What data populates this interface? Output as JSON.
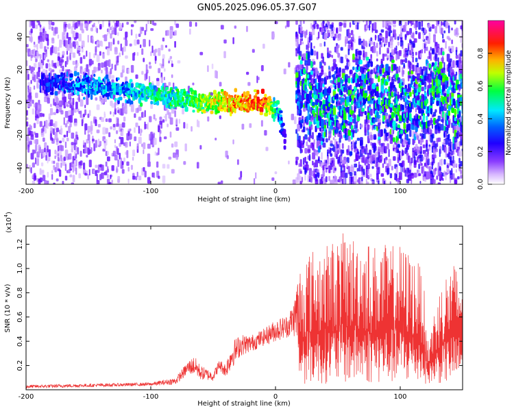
{
  "title": "GN05.2025.096.05.37.G07",
  "colors": {
    "snr_line": "#ee3333",
    "axis": "#000000"
  },
  "chart_data": [
    {
      "type": "heatmap",
      "xlabel": "Height of straight line (km)",
      "ylabel": "Frequency (Hz)",
      "xlim": [
        -200,
        150
      ],
      "ylim": [
        -50,
        50
      ],
      "xticks": [
        -200,
        -100,
        0,
        100
      ],
      "yticks": [
        -40,
        -20,
        0,
        20,
        40
      ],
      "colorbar": {
        "label": "Normalized spectral amplitude",
        "range": [
          0,
          1
        ],
        "ticks": [
          "0.0",
          "0.2",
          "0.4",
          "0.6",
          "0.8"
        ],
        "colormap": [
          "#ffffff",
          "#c090ff",
          "#6000ff",
          "#0000ff",
          "#00ffff",
          "#00ff00",
          "#ffff00",
          "#ff8800",
          "#ff0000",
          "#ff00a0"
        ]
      },
      "ridge": {
        "x": [
          -190,
          -170,
          -150,
          -130,
          -110,
          -90,
          -70,
          -55,
          -40,
          -25,
          -10,
          -3,
          2,
          5,
          7
        ],
        "y": [
          12,
          11,
          10,
          8,
          6,
          4,
          1,
          0,
          0,
          0,
          0,
          -3,
          -8,
          -18,
          -26
        ],
        "amplitude": [
          0.35,
          0.4,
          0.45,
          0.45,
          0.5,
          0.55,
          0.55,
          0.7,
          0.8,
          0.9,
          0.9,
          0.6,
          0.45,
          0.35,
          0.3
        ]
      }
    },
    {
      "type": "line",
      "xlabel": "Height of straight line (km)",
      "ylabel": "SNR (10 * v/v)",
      "y_multiplier": "(x10",
      "y_multiplier_exp": "4",
      "y_multiplier_close": ")",
      "xlim": [
        -200,
        150
      ],
      "ylim": [
        0,
        1.35
      ],
      "xticks": [
        -200,
        -100,
        0,
        100
      ],
      "yticks": [
        0.2,
        0.4,
        0.6,
        0.8,
        1.0,
        1.2
      ],
      "envelope": {
        "x": [
          -200,
          -150,
          -100,
          -80,
          -70,
          -65,
          -60,
          -50,
          -45,
          -40,
          -35,
          -28,
          -20,
          -10,
          0,
          10,
          15,
          18,
          25,
          40,
          55,
          70,
          80,
          90,
          100,
          110,
          118,
          122,
          130,
          140,
          150
        ],
        "lower": [
          0.0,
          0.01,
          0.02,
          0.02,
          0.08,
          0.05,
          0.03,
          0.04,
          0.12,
          0.05,
          0.08,
          0.2,
          0.25,
          0.3,
          0.32,
          0.35,
          0.3,
          0.05,
          0.05,
          0.05,
          0.05,
          0.05,
          0.05,
          0.05,
          0.05,
          0.05,
          0.05,
          0.05,
          0.05,
          0.05,
          0.05
        ],
        "upper": [
          0.04,
          0.05,
          0.06,
          0.1,
          0.24,
          0.28,
          0.2,
          0.15,
          0.25,
          0.22,
          0.4,
          0.46,
          0.45,
          0.5,
          0.58,
          0.62,
          0.75,
          1.0,
          1.15,
          1.2,
          1.3,
          1.25,
          1.2,
          1.2,
          1.2,
          1.12,
          1.0,
          0.4,
          0.8,
          1.05,
          1.05
        ]
      }
    }
  ]
}
